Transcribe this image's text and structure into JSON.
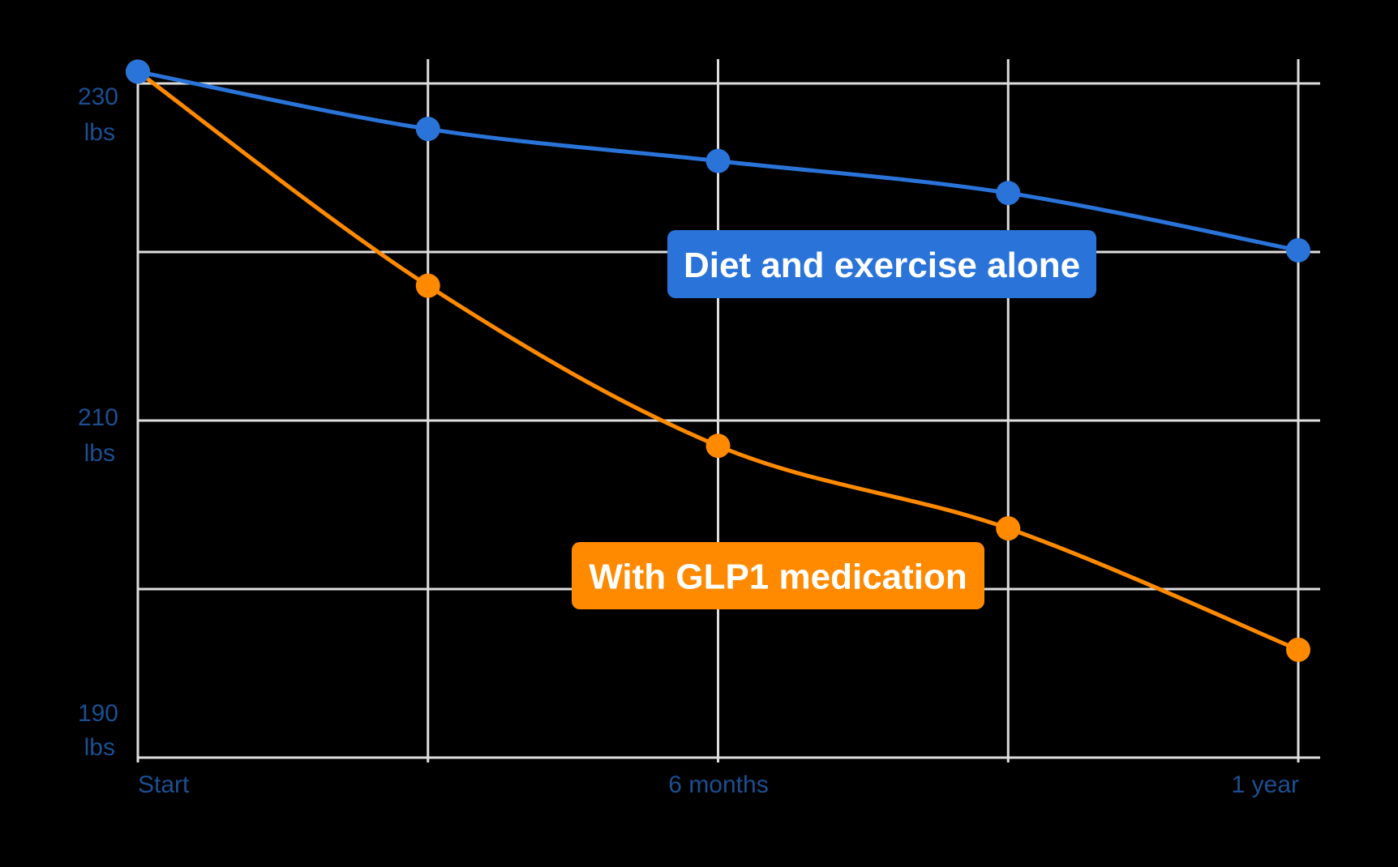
{
  "chart_data": {
    "type": "line",
    "title": "",
    "xlabel": "",
    "ylabel": "",
    "x_tick_labels": [
      "Start",
      "6 months",
      "1 year"
    ],
    "y_ticks": [
      {
        "value": 230,
        "label": "230",
        "unit": "lbs"
      },
      {
        "value": 210,
        "label": "210",
        "unit": "lbs"
      },
      {
        "value": 190,
        "label": "190",
        "unit": "lbs"
      }
    ],
    "ylim": [
      190,
      230
    ],
    "x_months": [
      0,
      3,
      6,
      9,
      12
    ],
    "grid": true,
    "legend": "inline labels",
    "series": [
      {
        "name": "Diet and exercise alone",
        "color": "#2a74d9",
        "values": [
          230.7,
          227.3,
          225.4,
          223.5,
          220.1
        ]
      },
      {
        "name": "With GLP1 medication",
        "color": "#ff8a00",
        "values": [
          230.7,
          218.0,
          208.5,
          203.6,
          196.4
        ]
      }
    ],
    "background": "#000000",
    "grid_color": "#dddddd",
    "tick_color": "#1c4f92"
  }
}
